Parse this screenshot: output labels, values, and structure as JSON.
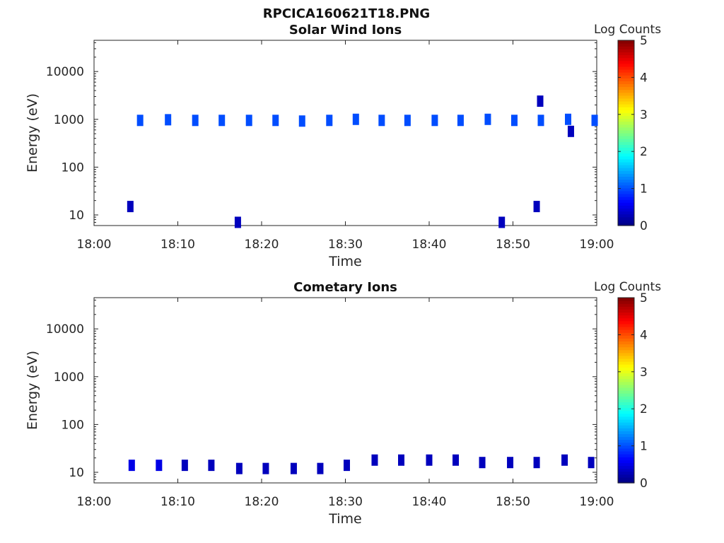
{
  "figure_title": "RPCICA160621T18.PNG",
  "chart_data": [
    {
      "type": "heatmap",
      "title": "Solar Wind Ions",
      "xlabel": "Time",
      "ylabel": "Energy (eV)",
      "xticks": [
        "18:00",
        "18:10",
        "18:20",
        "18:30",
        "18:40",
        "18:50",
        "19:00"
      ],
      "xlim": [
        "18:00",
        "19:00"
      ],
      "yticks": [
        10,
        100,
        1000,
        10000
      ],
      "ylim": [
        6,
        45000
      ],
      "yscale": "log",
      "colorbar": {
        "label": "Log Counts",
        "min": 0,
        "max": 5,
        "ticks": [
          0,
          1,
          2,
          3,
          4,
          5
        ],
        "colormap": "jet"
      },
      "points": [
        {
          "time": "18:05:30",
          "energy": 950,
          "value": 1.0
        },
        {
          "time": "18:08:50",
          "energy": 980,
          "value": 1.0
        },
        {
          "time": "18:12:05",
          "energy": 950,
          "value": 1.0
        },
        {
          "time": "18:15:15",
          "energy": 950,
          "value": 1.0
        },
        {
          "time": "18:18:30",
          "energy": 950,
          "value": 1.0
        },
        {
          "time": "18:21:40",
          "energy": 950,
          "value": 1.0
        },
        {
          "time": "18:24:50",
          "energy": 920,
          "value": 1.0
        },
        {
          "time": "18:28:05",
          "energy": 950,
          "value": 1.0
        },
        {
          "time": "18:31:15",
          "energy": 1000,
          "value": 1.0
        },
        {
          "time": "18:34:20",
          "energy": 950,
          "value": 1.0
        },
        {
          "time": "18:37:25",
          "energy": 950,
          "value": 1.0
        },
        {
          "time": "18:40:40",
          "energy": 950,
          "value": 1.0
        },
        {
          "time": "18:43:45",
          "energy": 950,
          "value": 1.0
        },
        {
          "time": "18:47:00",
          "energy": 1000,
          "value": 1.0
        },
        {
          "time": "18:50:10",
          "energy": 950,
          "value": 1.0
        },
        {
          "time": "18:53:20",
          "energy": 950,
          "value": 1.0
        },
        {
          "time": "18:56:35",
          "energy": 1000,
          "value": 1.0
        },
        {
          "time": "18:59:45",
          "energy": 950,
          "value": 1.0
        },
        {
          "time": "18:04:20",
          "energy": 15,
          "value": 0.3
        },
        {
          "time": "18:17:10",
          "energy": 7,
          "value": 0.3
        },
        {
          "time": "18:48:40",
          "energy": 7,
          "value": 0.3
        },
        {
          "time": "18:52:50",
          "energy": 15,
          "value": 0.3
        },
        {
          "time": "18:53:15",
          "energy": 2400,
          "value": 0.3
        },
        {
          "time": "18:56:55",
          "energy": 560,
          "value": 0.3
        }
      ]
    },
    {
      "type": "heatmap",
      "title": "Cometary Ions",
      "xlabel": "Time",
      "ylabel": "Energy (eV)",
      "xticks": [
        "18:00",
        "18:10",
        "18:20",
        "18:30",
        "18:40",
        "18:50",
        "19:00"
      ],
      "xlim": [
        "18:00",
        "19:00"
      ],
      "yticks": [
        10,
        100,
        1000,
        10000
      ],
      "ylim": [
        6,
        45000
      ],
      "yscale": "log",
      "colorbar": {
        "label": "Log Counts",
        "min": 0,
        "max": 5,
        "ticks": [
          0,
          1,
          2,
          3,
          4,
          5
        ],
        "colormap": "jet"
      },
      "points": [
        {
          "time": "18:04:30",
          "energy": 14,
          "value": 0.5
        },
        {
          "time": "18:07:45",
          "energy": 14,
          "value": 0.5
        },
        {
          "time": "18:10:50",
          "energy": 14,
          "value": 0.3
        },
        {
          "time": "18:14:00",
          "energy": 14,
          "value": 0.3
        },
        {
          "time": "18:17:20",
          "energy": 12,
          "value": 0.3
        },
        {
          "time": "18:20:30",
          "energy": 12,
          "value": 0.3
        },
        {
          "time": "18:23:50",
          "energy": 12,
          "value": 0.3
        },
        {
          "time": "18:27:00",
          "energy": 12,
          "value": 0.3
        },
        {
          "time": "18:30:10",
          "energy": 14,
          "value": 0.3
        },
        {
          "time": "18:33:30",
          "energy": 18,
          "value": 0.3
        },
        {
          "time": "18:36:40",
          "energy": 18,
          "value": 0.3
        },
        {
          "time": "18:40:00",
          "energy": 18,
          "value": 0.3
        },
        {
          "time": "18:43:10",
          "energy": 18,
          "value": 0.3
        },
        {
          "time": "18:46:20",
          "energy": 16,
          "value": 0.3
        },
        {
          "time": "18:49:40",
          "energy": 16,
          "value": 0.3
        },
        {
          "time": "18:52:50",
          "energy": 16,
          "value": 0.3
        },
        {
          "time": "18:56:10",
          "energy": 18,
          "value": 0.3
        },
        {
          "time": "18:59:20",
          "energy": 16,
          "value": 0.3
        }
      ]
    }
  ]
}
